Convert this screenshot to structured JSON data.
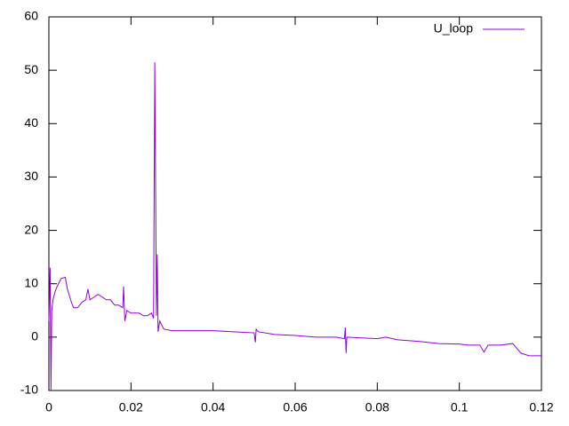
{
  "chart_data": {
    "type": "line",
    "x": [
      0.0,
      0.0003,
      0.0005,
      0.0007,
      0.001,
      0.0015,
      0.002,
      0.003,
      0.004,
      0.0045,
      0.0055,
      0.006,
      0.007,
      0.008,
      0.009,
      0.0095,
      0.01,
      0.011,
      0.012,
      0.013,
      0.014,
      0.015,
      0.016,
      0.017,
      0.018,
      0.0182,
      0.0185,
      0.019,
      0.02,
      0.022,
      0.023,
      0.024,
      0.025,
      0.0255,
      0.0258,
      0.0262,
      0.0264,
      0.0266,
      0.027,
      0.028,
      0.03,
      0.035,
      0.04,
      0.045,
      0.05,
      0.0503,
      0.0505,
      0.051,
      0.055,
      0.06,
      0.065,
      0.07,
      0.072,
      0.0722,
      0.0724,
      0.0726,
      0.08,
      0.082,
      0.085,
      0.09,
      0.095,
      0.1,
      0.102,
      0.105,
      0.106,
      0.107,
      0.11,
      0.113,
      0.115,
      0.117,
      0.12
    ],
    "series": [
      {
        "name": "U_loop",
        "color": "#9400d3",
        "values": [
          3,
          13,
          -10,
          5,
          7,
          8.5,
          9.5,
          11,
          11.2,
          9,
          6.5,
          5.5,
          5.5,
          6.5,
          7,
          9,
          7,
          7.5,
          8,
          7.5,
          7,
          7,
          6,
          6,
          5.5,
          9.5,
          3,
          5,
          4.5,
          4.5,
          4,
          4,
          4.5,
          3.5,
          51.5,
          4,
          15.5,
          1,
          3,
          1.5,
          1.2,
          1.2,
          1.2,
          1,
          0.8,
          -1,
          1.5,
          1,
          0.5,
          0.3,
          0,
          0,
          -0.3,
          1.8,
          -3,
          0,
          -0.3,
          0,
          -0.5,
          -0.8,
          -1.2,
          -1.3,
          -1.5,
          -1.5,
          -2.8,
          -1.5,
          -1.5,
          -1.2,
          -3,
          -3.5,
          -3.5
        ]
      }
    ],
    "xlim": [
      0,
      0.12
    ],
    "xticks": [
      0,
      0.02,
      0.04,
      0.06,
      0.08,
      0.1,
      0.12
    ],
    "ylim": [
      -10,
      60
    ],
    "yticks": [
      -10,
      0,
      10,
      20,
      30,
      40,
      50,
      60
    ],
    "legend": "top-right"
  }
}
